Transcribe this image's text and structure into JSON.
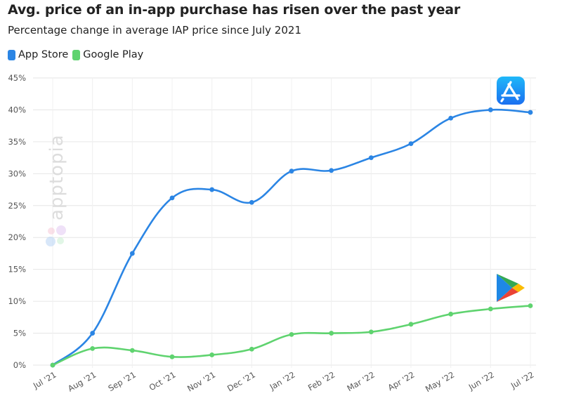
{
  "title": "Avg. price of an in-app purchase has risen over the past year",
  "subtitle": "Percentage change in average IAP price since July 2021",
  "watermark": "apptopia",
  "icons": {
    "app_store": "app-store-icon",
    "google_play": "google-play-icon"
  },
  "colors": {
    "app_store": "#2b85e4",
    "google_play": "#5fd36f",
    "grid": "#e6e6e6",
    "axis_text": "#555555"
  },
  "chart_data": {
    "type": "line",
    "title": "Avg. price of an in-app purchase has risen over the past year",
    "subtitle": "Percentage change in average IAP price since July 2021",
    "categories": [
      "Jul '21",
      "Aug '21",
      "Sep '21",
      "Oct '21",
      "Nov '21",
      "Dec '21",
      "Jan '22",
      "Feb '22",
      "Mar '22",
      "Apr '22",
      "May '22",
      "Jun '22",
      "Jul '22"
    ],
    "series": [
      {
        "name": "App Store",
        "color": "#2b85e4",
        "values": [
          0,
          5.0,
          17.5,
          26.2,
          27.5,
          25.5,
          30.4,
          30.5,
          32.5,
          34.7,
          38.7,
          40.0,
          39.6
        ]
      },
      {
        "name": "Google Play",
        "color": "#5fd36f",
        "values": [
          0,
          2.6,
          2.3,
          1.3,
          1.6,
          2.5,
          4.8,
          5.0,
          5.2,
          6.4,
          8.0,
          8.8,
          9.3
        ]
      }
    ],
    "ylim": [
      0,
      45
    ],
    "yticks": [
      "0%",
      "5%",
      "10%",
      "15%",
      "20%",
      "25%",
      "30%",
      "35%",
      "40%",
      "45%"
    ],
    "grid": true,
    "legend": "top-left"
  }
}
